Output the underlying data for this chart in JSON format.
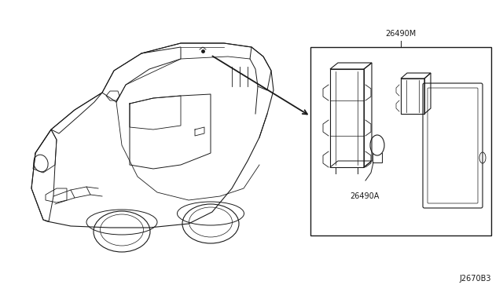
{
  "background_color": "#ffffff",
  "line_color": "#1a1a1a",
  "label_26490M": "26490M",
  "label_26490A": "26490A",
  "label_J2670B3": "J2670B3",
  "figsize": [
    6.4,
    3.72
  ],
  "dpi": 100
}
